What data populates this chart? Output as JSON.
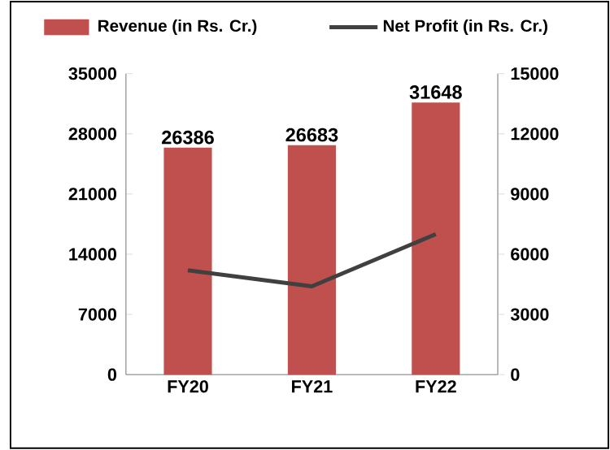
{
  "chart_data": {
    "type": "bar",
    "categories": [
      "FY20",
      "FY21",
      "FY22"
    ],
    "series": [
      {
        "name": "Revenue (in Rs. Cr.)",
        "color": "#c0504d",
        "values": [
          26386,
          26683,
          31648
        ],
        "value_labels": [
          "26386",
          "26683",
          "31648"
        ]
      },
      {
        "name": "Net Profit (in Rs. Cr.)",
        "type": "line",
        "axis": "y2",
        "color": "#404040",
        "values": [
          5200,
          4400,
          7000
        ]
      }
    ],
    "ylim": [
      0,
      35000
    ],
    "yticks": [
      0,
      7000,
      14000,
      21000,
      28000,
      35000
    ],
    "y2lim": [
      0,
      15000
    ],
    "y2ticks": [
      0,
      3000,
      6000,
      9000,
      12000,
      15000
    ],
    "legend": "top",
    "marker": "none",
    "line_style": "solid",
    "grid": false
  }
}
